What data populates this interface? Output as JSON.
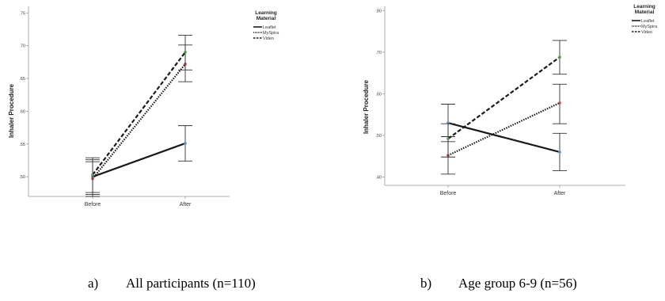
{
  "chart_data": [
    {
      "type": "line",
      "ylabel": "Inhaler Procedure",
      "categories": [
        "Before",
        "After"
      ],
      "yticks": [
        ".50",
        ".55",
        ".60",
        ".65",
        ".70",
        ".75"
      ],
      "ylim": [
        0.47,
        0.76
      ],
      "legend": {
        "title_line1": "Learning",
        "title_line2": "Material",
        "placement": "top-right"
      },
      "series": [
        {
          "name": "Leaflet",
          "style": "solid",
          "color": "#1a1a1a",
          "marker": "#5b8fc7",
          "values": [
            0.5,
            0.551
          ],
          "err_low": [
            0.473,
            0.524
          ],
          "err_high": [
            0.526,
            0.578
          ]
        },
        {
          "name": "MySpira",
          "style": "dotted",
          "color": "#1a1a1a",
          "marker": "#c0504d",
          "values": [
            0.497,
            0.672
          ],
          "err_low": [
            0.47,
            0.645
          ],
          "err_high": [
            0.523,
            0.701
          ]
        },
        {
          "name": "Video",
          "style": "dashed",
          "color": "#1a1a1a",
          "marker": "#4f9a4f",
          "values": [
            0.503,
            0.69
          ],
          "err_low": [
            0.476,
            0.663
          ],
          "err_high": [
            0.529,
            0.716
          ]
        }
      ],
      "caption_letter": "a)",
      "caption": "All participants (n=110)"
    },
    {
      "type": "line",
      "ylabel": "Inhaler Procedure",
      "categories": [
        "Before",
        "After"
      ],
      "yticks": [
        ".40",
        ".50",
        ".60",
        ".70",
        ".80"
      ],
      "ylim": [
        0.38,
        0.81
      ],
      "legend": {
        "title_line1": "Learning",
        "title_line2": "Material",
        "placement": "top-right"
      },
      "series": [
        {
          "name": "Leaflet",
          "style": "solid",
          "color": "#1a1a1a",
          "marker": "#5b8fc7",
          "values": [
            0.53,
            0.46
          ],
          "err_low": [
            0.485,
            0.415
          ],
          "err_high": [
            0.575,
            0.505
          ]
        },
        {
          "name": "MySpira",
          "style": "dotted",
          "color": "#1a1a1a",
          "marker": "#c0504d",
          "values": [
            0.452,
            0.578
          ],
          "err_low": [
            0.407,
            0.528
          ],
          "err_high": [
            0.497,
            0.623
          ]
        },
        {
          "name": "Video",
          "style": "dashed",
          "color": "#1a1a1a",
          "marker": "#4f9a4f",
          "values": [
            0.492,
            0.688
          ],
          "err_low": [
            0.448,
            0.647
          ],
          "err_high": [
            0.528,
            0.728
          ]
        }
      ],
      "caption_letter": "b)",
      "caption": "Age group 6-9 (n=56)"
    }
  ]
}
